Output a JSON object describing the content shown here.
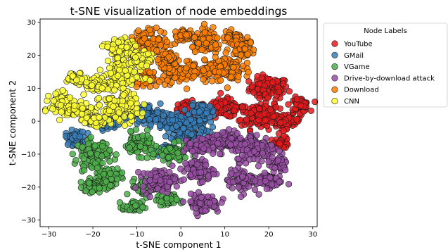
{
  "chart_data": {
    "type": "scatter",
    "title": "t-SNE visualization of node embeddings",
    "xlabel": "t-SNE component 1",
    "ylabel": "t-SNE component 2",
    "xlim": [
      -32,
      31
    ],
    "ylim": [
      -32,
      31
    ],
    "xticks": [
      -30,
      -20,
      -10,
      0,
      10,
      20,
      30
    ],
    "yticks": [
      -30,
      -20,
      -10,
      0,
      10,
      20,
      30
    ],
    "grid": false,
    "legend": {
      "title": "Node Labels",
      "placement": "outside-right-top"
    },
    "series": [
      {
        "name": "YouTube",
        "color": "#e41a1c",
        "clusters": [
          [
            20,
            10,
            4,
            3
          ],
          [
            18,
            2,
            4,
            4
          ],
          [
            24,
            0,
            3,
            2
          ],
          [
            10,
            4,
            4,
            2.5
          ],
          [
            2,
            3,
            3.5,
            2.5
          ],
          [
            23,
            -6.5,
            1.5,
            1.5
          ],
          [
            27,
            5,
            2,
            2
          ]
        ]
      },
      {
        "name": "GMail",
        "color": "#377eb8",
        "clusters": [
          [
            -8,
            2,
            3,
            3
          ],
          [
            2,
            -2,
            4,
            4
          ],
          [
            -3,
            0,
            2.5,
            2.5
          ],
          [
            -17,
            -1,
            3,
            1.5
          ],
          [
            -14,
            2,
            2.5,
            1.5
          ],
          [
            -24,
            -5,
            2,
            2
          ],
          [
            5,
            3,
            2.5,
            2
          ],
          [
            -2,
            -9,
            2,
            1.5
          ]
        ]
      },
      {
        "name": "VGame",
        "color": "#4daf4a",
        "clusters": [
          [
            -20,
            -9.5,
            3.5,
            3.5
          ],
          [
            -9.5,
            -7,
            3,
            3
          ],
          [
            -2,
            -10,
            3,
            2.5
          ],
          [
            -17,
            -17,
            3,
            3
          ],
          [
            -8,
            -20,
            3,
            2.5
          ],
          [
            -3,
            -24,
            2,
            1.5
          ],
          [
            -11,
            -26,
            2,
            1.5
          ],
          [
            -20,
            -20,
            2,
            1.5
          ]
        ]
      },
      {
        "name": "Drive-by-download attack",
        "color": "#984ea3",
        "clusters": [
          [
            10,
            -6,
            4,
            3
          ],
          [
            17,
            -8,
            4,
            4
          ],
          [
            5,
            -25,
            3.5,
            2.5
          ],
          [
            -5,
            -18,
            3.5,
            3
          ],
          [
            4,
            -15,
            3,
            3
          ],
          [
            14,
            -18,
            3,
            3
          ],
          [
            20,
            -18,
            2.5,
            2
          ],
          [
            22,
            -13,
            2,
            2
          ],
          [
            4,
            -8,
            2.5,
            2
          ]
        ]
      },
      {
        "name": "Download",
        "color": "#ff7f00",
        "clusters": [
          [
            -7,
            24,
            4,
            3.5
          ],
          [
            1,
            26,
            2,
            1.5
          ],
          [
            9,
            16,
            4.5,
            3.5
          ],
          [
            0,
            15,
            4,
            3
          ],
          [
            -3,
            19,
            2,
            2
          ],
          [
            6,
            24,
            3,
            3
          ],
          [
            12,
            25,
            2.5,
            2
          ],
          [
            14,
            22,
            2.5,
            2
          ],
          [
            -8,
            13,
            2.5,
            2
          ]
        ]
      },
      {
        "name": "CNN",
        "color": "#ffff33",
        "clusters": [
          [
            -13,
            14,
            4,
            4
          ],
          [
            -14,
            22,
            3,
            3
          ],
          [
            -19,
            11,
            2.5,
            2
          ],
          [
            -27,
            5,
            2.5,
            3
          ],
          [
            -23,
            3,
            2.5,
            2
          ],
          [
            -14,
            4,
            4,
            4
          ],
          [
            -9,
            19,
            2,
            2
          ],
          [
            -24,
            13,
            2,
            1.5
          ],
          [
            -19,
            0,
            2,
            1.5
          ]
        ]
      }
    ]
  }
}
